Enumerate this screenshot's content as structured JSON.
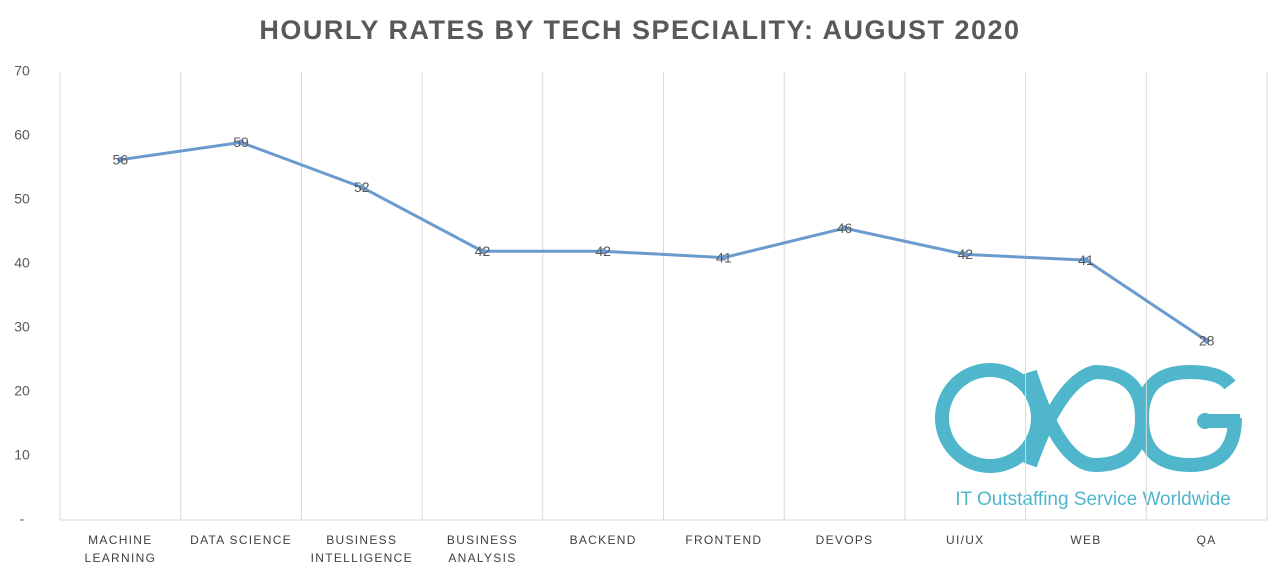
{
  "chart_data": {
    "type": "line",
    "title": "HOURLY RATES BY TECH SPECIALITY: AUGUST 2020",
    "watermark": "IT Outstaffing Service Worldwide",
    "categories": [
      "MACHINE LEARNING",
      "DATA SCIENCE",
      "BUSINESS INTELLIGENCE",
      "BUSINESS ANALYSIS",
      "BACKEND",
      "FRONTEND",
      "DEVOPS",
      "UI/UX",
      "WEB",
      "QA"
    ],
    "series": [
      {
        "name": "Hourly rate",
        "color": "#6a9bcf",
        "values": [
          56.3,
          59,
          52,
          42,
          42,
          41,
          45.6,
          41.5,
          40.6,
          28
        ],
        "value_labels": [
          "56",
          "59",
          "52",
          "42",
          "42",
          "41",
          "46",
          "42",
          "41",
          "28"
        ]
      }
    ],
    "ylim": [
      0,
      70
    ],
    "yticks": [
      {
        "value": 0,
        "label": "-"
      },
      10,
      20,
      30,
      40,
      50,
      60,
      70
    ],
    "grid": "vertical"
  }
}
